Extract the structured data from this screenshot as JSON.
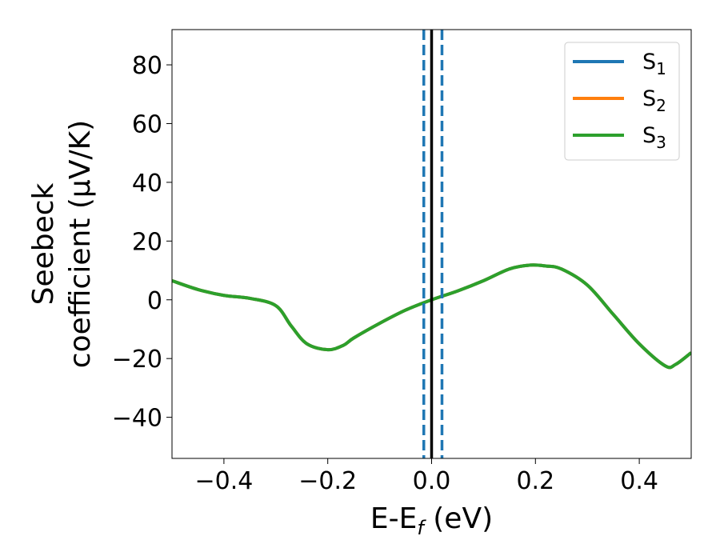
{
  "chart_data": {
    "type": "line",
    "xlabel": "E-E",
    "xlabel_sub": "f",
    "xlabel_unit": " (eV)",
    "ylabel_line1": "Seebeck",
    "ylabel_line2": "coefficient  (μV/K)",
    "xlim": [
      -0.5,
      0.5
    ],
    "ylim": [
      -54,
      92
    ],
    "xticks": [
      -0.4,
      -0.2,
      0.0,
      0.2,
      0.4
    ],
    "xtick_labels": [
      "−0.4",
      "−0.2",
      "0.0",
      "0.2",
      "0.4"
    ],
    "yticks": [
      -40,
      -20,
      0,
      20,
      40,
      60,
      80
    ],
    "ytick_labels": [
      "−40",
      "−20",
      "0",
      "20",
      "40",
      "60",
      "80"
    ],
    "grid": false,
    "legend_placement": "top-right",
    "series": [
      {
        "name": "S",
        "name_sub": "1",
        "color": "#1f77b4",
        "x": [
          -0.5,
          -0.45,
          -0.4,
          -0.35,
          -0.3,
          -0.27,
          -0.24,
          -0.2,
          -0.17,
          -0.15,
          -0.1,
          -0.05,
          0.0,
          0.05,
          0.1,
          0.15,
          0.19,
          0.22,
          0.25,
          0.3,
          0.35,
          0.4,
          0.45,
          0.47,
          0.5
        ],
        "y": [
          6.5,
          3.5,
          1.5,
          0.5,
          -2.0,
          -9.0,
          -15.0,
          -17.0,
          -15.5,
          -13.0,
          -8.0,
          -3.5,
          0.0,
          3.0,
          6.5,
          10.5,
          11.8,
          11.5,
          10.5,
          5.0,
          -5.0,
          -15.0,
          -22.5,
          -22.0,
          -18.0
        ]
      },
      {
        "name": "S",
        "name_sub": "2",
        "color": "#ff7f0e",
        "x": [
          -0.5,
          -0.45,
          -0.4,
          -0.35,
          -0.3,
          -0.27,
          -0.24,
          -0.2,
          -0.17,
          -0.15,
          -0.1,
          -0.05,
          0.0,
          0.05,
          0.1,
          0.15,
          0.19,
          0.22,
          0.25,
          0.3,
          0.35,
          0.4,
          0.45,
          0.47,
          0.5
        ],
        "y": [
          6.5,
          3.5,
          1.5,
          0.5,
          -2.0,
          -9.0,
          -15.0,
          -17.0,
          -15.5,
          -13.0,
          -8.0,
          -3.5,
          0.0,
          3.0,
          6.5,
          10.5,
          11.8,
          11.5,
          10.5,
          5.0,
          -5.0,
          -15.0,
          -22.5,
          -22.0,
          -18.0
        ]
      },
      {
        "name": "S",
        "name_sub": "3",
        "color": "#2ca02c",
        "x": [
          -0.5,
          -0.45,
          -0.4,
          -0.35,
          -0.3,
          -0.27,
          -0.24,
          -0.2,
          -0.17,
          -0.15,
          -0.1,
          -0.05,
          0.0,
          0.05,
          0.1,
          0.15,
          0.19,
          0.22,
          0.25,
          0.3,
          0.35,
          0.4,
          0.45,
          0.47,
          0.5
        ],
        "y": [
          6.5,
          3.5,
          1.5,
          0.5,
          -2.0,
          -9.0,
          -15.0,
          -17.0,
          -15.5,
          -13.0,
          -8.0,
          -3.5,
          0.0,
          3.0,
          6.5,
          10.5,
          11.8,
          11.5,
          10.5,
          5.0,
          -5.0,
          -15.0,
          -22.5,
          -22.0,
          -18.0
        ]
      }
    ],
    "vlines": [
      {
        "x": 0.0,
        "color": "#000000",
        "style": "solid"
      },
      {
        "x": -0.015,
        "color": "#1f77b4",
        "style": "dashed"
      },
      {
        "x": 0.02,
        "color": "#1f77b4",
        "style": "dashed"
      }
    ]
  }
}
